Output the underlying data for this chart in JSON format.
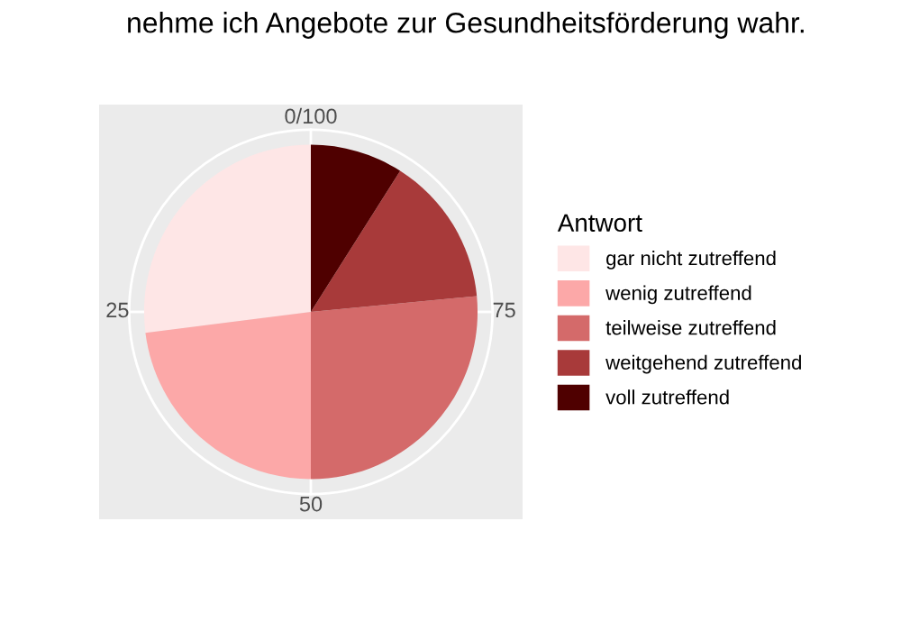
{
  "chart_data": {
    "type": "pie",
    "title": "nehme ich Angebote zur Gesundheitsförderung wahr.",
    "legend_title": "Antwort",
    "categories": [
      "gar nicht zutreffend",
      "wenig zutreffend",
      "teilweise zutreffend",
      "weitgehend zutreffend",
      "voll zutreffend"
    ],
    "values": [
      27,
      23,
      26.5,
      14.5,
      9
    ],
    "colors": [
      "#fee6e6",
      "#fca8a8",
      "#d46a6a",
      "#a83a3a",
      "#4f0000"
    ],
    "annotations": [
      "0/100",
      "25",
      "50",
      "75"
    ],
    "legend": "right"
  }
}
